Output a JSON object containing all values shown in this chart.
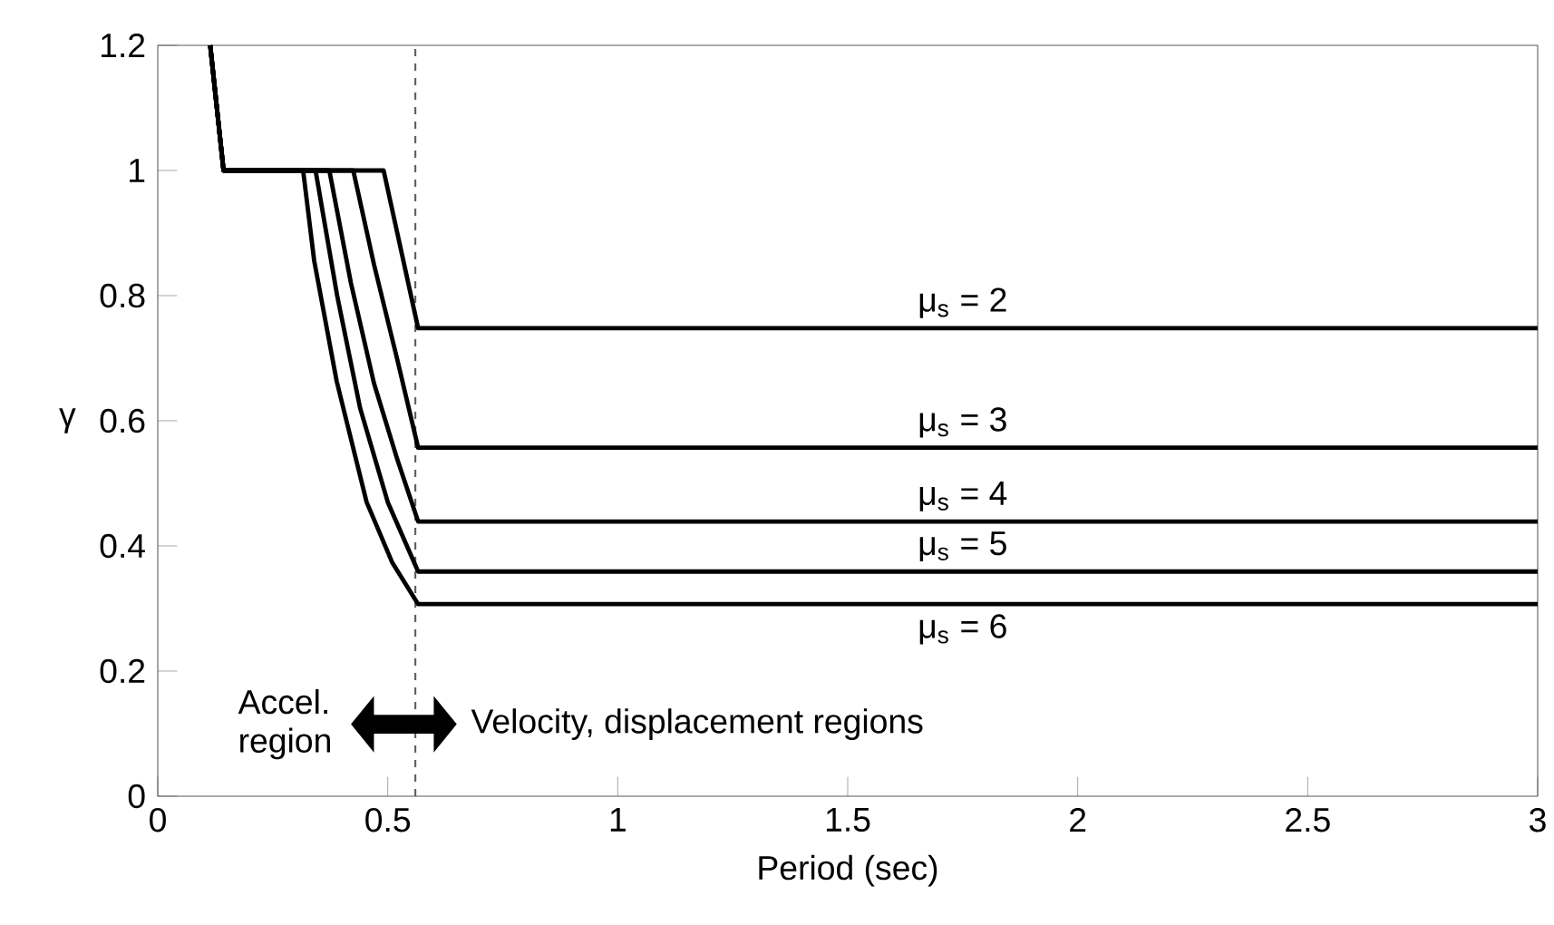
{
  "chart_data": {
    "type": "line",
    "xlabel": "Period (sec)",
    "ylabel": "γ",
    "xlim": [
      0,
      3
    ],
    "ylim": [
      0,
      1.2
    ],
    "xticks": [
      0,
      0.5,
      1,
      1.5,
      2,
      2.5,
      3
    ],
    "yticks": [
      0,
      0.2,
      0.4,
      0.6,
      0.8,
      1,
      1.2
    ],
    "grid": false,
    "marker": "none",
    "line_style": "solid",
    "series": [
      {
        "name": "μ$_{s}$ = 2",
        "color": "#000000",
        "x": [
          0.114,
          0.143,
          0.491,
          0.566,
          3
        ],
        "values": [
          1.2,
          1,
          1,
          0.748,
          0.748
        ]
      },
      {
        "name": "μ$_{s}$ = 3",
        "color": "#000000",
        "x": [
          0.114,
          0.143,
          0.425,
          0.47,
          0.52,
          0.566,
          3
        ],
        "values": [
          1.2,
          1,
          1,
          0.85,
          0.7,
          0.557,
          0.557
        ]
      },
      {
        "name": "μ$_{s}$ = 4",
        "color": "#000000",
        "x": [
          0.114,
          0.143,
          0.373,
          0.42,
          0.47,
          0.52,
          0.566,
          3
        ],
        "values": [
          1.2,
          1,
          1,
          0.82,
          0.66,
          0.54,
          0.439,
          0.439
        ]
      },
      {
        "name": "μ$_{s}$ = 5",
        "color": "#000000",
        "x": [
          0.114,
          0.143,
          0.343,
          0.39,
          0.44,
          0.5,
          0.566,
          3
        ],
        "values": [
          1.2,
          1,
          1,
          0.8,
          0.62,
          0.47,
          0.359,
          0.359
        ]
      },
      {
        "name": "μ$_{s}$ = 6",
        "color": "#000000",
        "x": [
          0.114,
          0.143,
          0.316,
          0.34,
          0.389,
          0.454,
          0.51,
          0.566,
          3
        ],
        "values": [
          1.2,
          1,
          1,
          0.856,
          0.663,
          0.47,
          0.373,
          0.307,
          0.307
        ]
      }
    ],
    "ref_lines": [
      {
        "axis": "x",
        "value": 0.56,
        "color": "#606060",
        "line_style": "dashed"
      }
    ],
    "annotations": [
      "Accel. region",
      "Velocity, displacement regions"
    ]
  }
}
